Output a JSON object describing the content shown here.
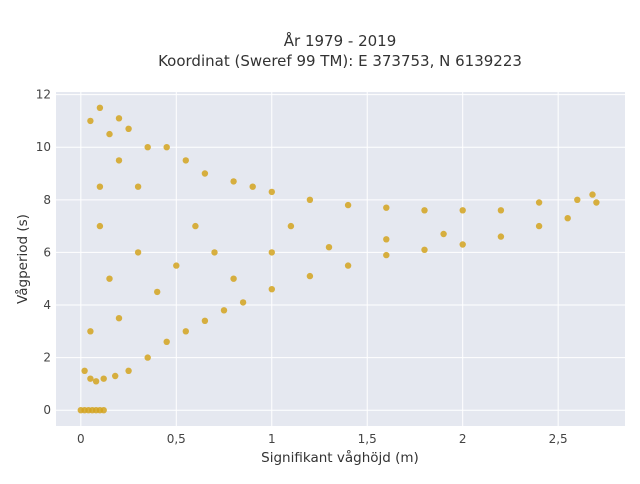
{
  "chart_data": {
    "type": "scatter",
    "title_line1": "År 1979 - 2019",
    "title_line2": "Koordinat (Sweref 99 TM): E 373753, N 6139223",
    "xlabel": "Signifikant våghöjd (m)",
    "ylabel": "Vågperiod (s)",
    "xlim": [
      -0.13,
      2.85
    ],
    "ylim": [
      -0.6,
      12.1
    ],
    "x_ticks": [
      0,
      0.5,
      1,
      1.5,
      2,
      2.5
    ],
    "x_tick_labels": [
      "0",
      "0,5",
      "1",
      "1,5",
      "2",
      "2,5"
    ],
    "y_ticks": [
      0,
      2,
      4,
      6,
      8,
      10,
      12
    ],
    "y_tick_labels": [
      "0",
      "2",
      "4",
      "6",
      "8",
      "10",
      "12"
    ],
    "grid": true,
    "marker_color": "#D4A31F",
    "plot_background": "#E5E8F0",
    "series": [
      {
        "points": [
          [
            0.0,
            0
          ],
          [
            0.02,
            0
          ],
          [
            0.04,
            0
          ],
          [
            0.06,
            0
          ],
          [
            0.08,
            0
          ],
          [
            0.1,
            0
          ],
          [
            0.12,
            0
          ],
          [
            0.02,
            1.5
          ],
          [
            0.05,
            1.2
          ],
          [
            0.08,
            1.1
          ],
          [
            0.12,
            1.2
          ],
          [
            0.18,
            1.3
          ],
          [
            0.25,
            1.5
          ],
          [
            0.35,
            2.0
          ],
          [
            0.45,
            2.6
          ],
          [
            0.55,
            3.0
          ],
          [
            0.65,
            3.4
          ],
          [
            0.75,
            3.8
          ],
          [
            0.85,
            4.1
          ],
          [
            1.0,
            4.6
          ],
          [
            1.2,
            5.1
          ],
          [
            1.4,
            5.5
          ],
          [
            1.6,
            5.9
          ],
          [
            1.8,
            6.1
          ],
          [
            2.0,
            6.3
          ],
          [
            2.2,
            6.6
          ],
          [
            2.4,
            7.0
          ],
          [
            2.55,
            7.3
          ],
          [
            2.7,
            7.9
          ],
          [
            0.05,
            11.0
          ],
          [
            0.1,
            11.5
          ],
          [
            0.15,
            10.5
          ],
          [
            0.2,
            11.1
          ],
          [
            0.25,
            10.7
          ],
          [
            0.35,
            10.0
          ],
          [
            0.45,
            10.0
          ],
          [
            0.55,
            9.5
          ],
          [
            0.65,
            9.0
          ],
          [
            0.8,
            8.7
          ],
          [
            0.9,
            8.5
          ],
          [
            1.0,
            8.3
          ],
          [
            1.2,
            8.0
          ],
          [
            1.4,
            7.8
          ],
          [
            1.6,
            7.7
          ],
          [
            1.8,
            7.6
          ],
          [
            2.0,
            7.6
          ],
          [
            2.2,
            7.6
          ],
          [
            2.4,
            7.9
          ],
          [
            2.6,
            8.0
          ],
          [
            2.68,
            8.2
          ],
          [
            0.1,
            8.5
          ],
          [
            0.2,
            9.5
          ],
          [
            0.3,
            8.5
          ],
          [
            0.15,
            5.0
          ],
          [
            0.3,
            6.0
          ],
          [
            0.5,
            5.5
          ],
          [
            0.7,
            6.0
          ],
          [
            1.0,
            6.0
          ],
          [
            1.3,
            6.2
          ],
          [
            1.6,
            6.5
          ],
          [
            1.9,
            6.7
          ],
          [
            0.05,
            3.0
          ],
          [
            0.1,
            7.0
          ],
          [
            0.2,
            3.5
          ],
          [
            0.4,
            4.5
          ],
          [
            0.6,
            7.0
          ],
          [
            0.8,
            5.0
          ],
          [
            1.1,
            7.0
          ]
        ]
      }
    ]
  }
}
